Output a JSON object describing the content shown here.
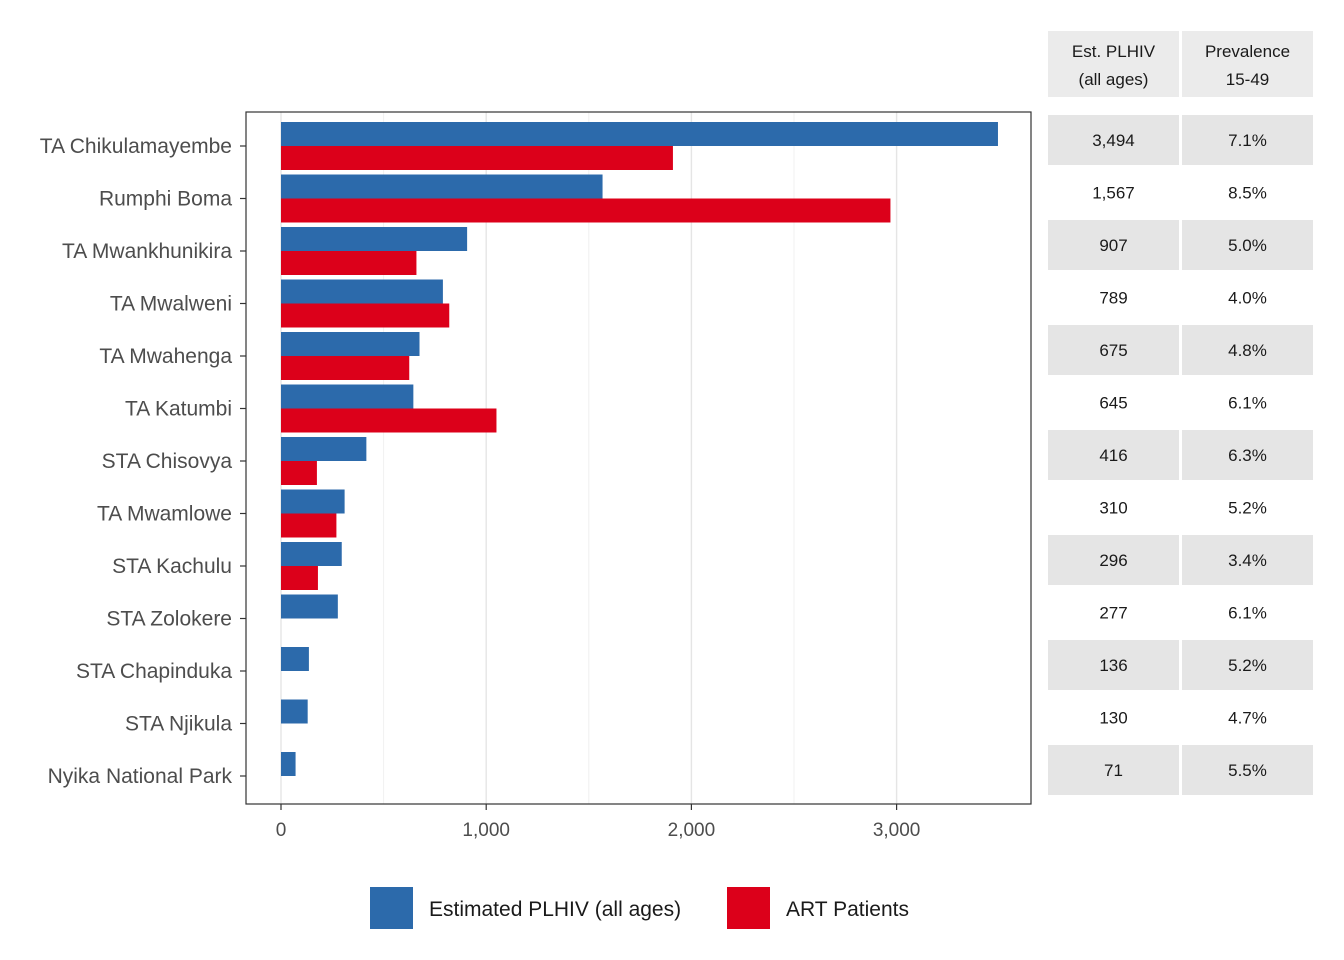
{
  "chart_data": {
    "type": "bar",
    "orientation": "horizontal",
    "categories": [
      "TA Chikulamayembe",
      "Rumphi Boma",
      "TA Mwankhunikira",
      "TA Mwalweni",
      "TA Mwahenga",
      "TA Katumbi",
      "STA Chisovya",
      "TA Mwamlowe",
      "STA Kachulu",
      "STA Zolokere",
      "STA Chapinduka",
      "STA Njikula",
      "Nyika National Park"
    ],
    "series": [
      {
        "name": "Estimated PLHIV (all ages)",
        "color": "#2c6aab",
        "values": [
          3494,
          1567,
          907,
          789,
          675,
          645,
          416,
          310,
          296,
          277,
          136,
          130,
          71
        ]
      },
      {
        "name": "ART Patients",
        "color": "#dc001a",
        "values": [
          1910,
          2970,
          660,
          820,
          625,
          1050,
          175,
          270,
          180,
          null,
          null,
          null,
          null
        ]
      }
    ],
    "xticks": [
      0,
      1000,
      2000,
      3000
    ],
    "xtick_labels": [
      "0",
      "1,000",
      "2,000",
      "3,000"
    ],
    "xlim": [
      -170,
      3660
    ],
    "grid": true,
    "legend_position": "bottom",
    "table": {
      "columns": [
        [
          "Est. PLHIV",
          "(all ages)"
        ],
        [
          "Prevalence",
          "15-49"
        ]
      ],
      "rows": [
        [
          "3,494",
          "7.1%"
        ],
        [
          "1,567",
          "8.5%"
        ],
        [
          "907",
          "5.0%"
        ],
        [
          "789",
          "4.0%"
        ],
        [
          "675",
          "4.8%"
        ],
        [
          "645",
          "6.1%"
        ],
        [
          "416",
          "6.3%"
        ],
        [
          "310",
          "5.2%"
        ],
        [
          "296",
          "3.4%"
        ],
        [
          "277",
          "6.1%"
        ],
        [
          "136",
          "5.2%"
        ],
        [
          "130",
          "4.7%"
        ],
        [
          "71",
          "5.5%"
        ]
      ]
    }
  }
}
